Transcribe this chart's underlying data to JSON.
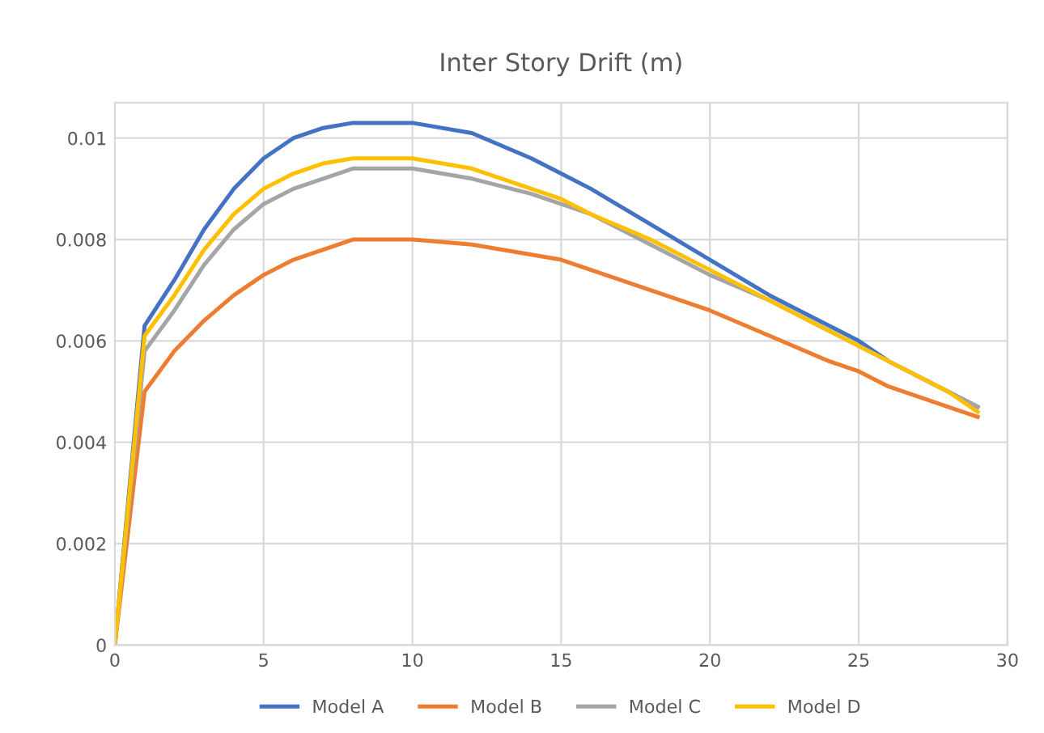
{
  "chart_data": {
    "type": "line",
    "title": "Inter Story Drift (m)",
    "x": [
      0,
      1,
      2,
      3,
      4,
      5,
      6,
      7,
      8,
      10,
      12,
      14,
      15,
      16,
      18,
      20,
      22,
      24,
      25,
      26,
      28,
      29
    ],
    "series": [
      {
        "name": "Model A",
        "color": "#4472c4",
        "values": [
          0,
          0.0063,
          0.0072,
          0.0082,
          0.009,
          0.0096,
          0.01,
          0.0102,
          0.0103,
          0.0103,
          0.0101,
          0.0096,
          0.0093,
          0.009,
          0.0083,
          0.0076,
          0.0069,
          0.0063,
          0.006,
          0.0056,
          0.005,
          0.0047
        ]
      },
      {
        "name": "Model B",
        "color": "#ed7d31",
        "values": [
          0,
          0.005,
          0.0058,
          0.0064,
          0.0069,
          0.0073,
          0.0076,
          0.0078,
          0.008,
          0.008,
          0.0079,
          0.0077,
          0.0076,
          0.0074,
          0.007,
          0.0066,
          0.0061,
          0.0056,
          0.0054,
          0.0051,
          0.0047,
          0.0045
        ]
      },
      {
        "name": "Model C",
        "color": "#a5a5a5",
        "values": [
          0,
          0.0058,
          0.0066,
          0.0075,
          0.0082,
          0.0087,
          0.009,
          0.0092,
          0.0094,
          0.0094,
          0.0092,
          0.0089,
          0.0087,
          0.0085,
          0.0079,
          0.0073,
          0.0068,
          0.0062,
          0.0059,
          0.0056,
          0.005,
          0.0047
        ]
      },
      {
        "name": "Model D",
        "color": "#ffc000",
        "values": [
          0,
          0.0061,
          0.0069,
          0.0078,
          0.0085,
          0.009,
          0.0093,
          0.0095,
          0.0096,
          0.0096,
          0.0094,
          0.009,
          0.0088,
          0.0085,
          0.008,
          0.0074,
          0.0068,
          0.0062,
          0.0059,
          0.0056,
          0.005,
          0.0046
        ]
      }
    ],
    "xlim": [
      0,
      30
    ],
    "xticks": [
      0,
      5,
      10,
      15,
      20,
      25,
      30
    ],
    "ylim": [
      0,
      0.0107
    ],
    "yticks": [
      0,
      0.002,
      0.004,
      0.006,
      0.008,
      0.01
    ],
    "grid": true,
    "legend": "bottom",
    "marker": "none",
    "line_style": "solid"
  }
}
